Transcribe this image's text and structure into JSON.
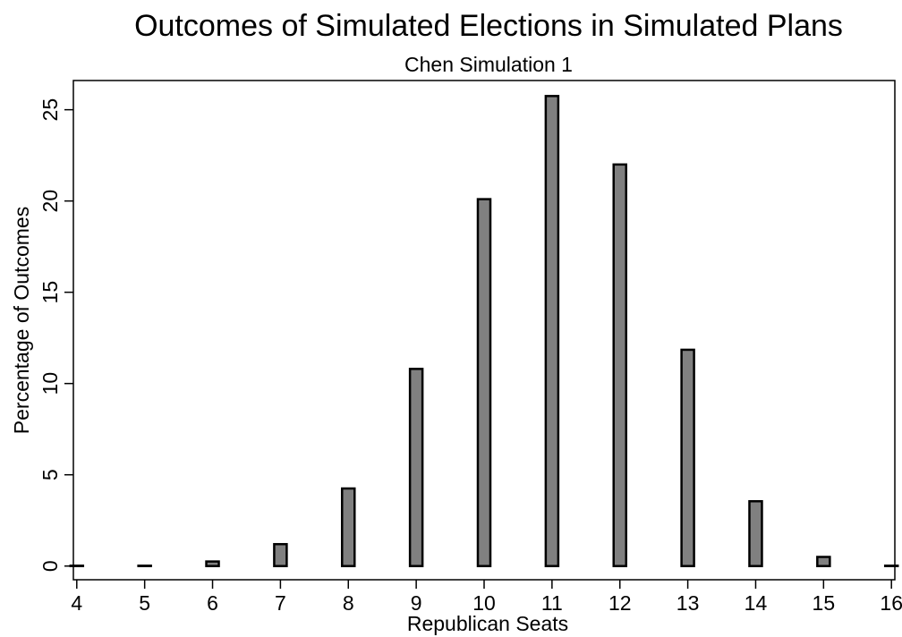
{
  "chart_data": {
    "type": "bar",
    "title": "Outcomes of Simulated Elections in Simulated Plans",
    "subtitle": "Chen Simulation 1",
    "xlabel": "Republican Seats",
    "ylabel": "Percentage of Outcomes",
    "x": [
      4,
      5,
      6,
      7,
      8,
      9,
      10,
      11,
      12,
      13,
      14,
      15,
      16
    ],
    "values": [
      0.02,
      0.02,
      0.25,
      1.2,
      4.25,
      10.8,
      20.1,
      25.75,
      22.0,
      11.85,
      3.55,
      0.5,
      0.02
    ],
    "xlim": [
      3.95,
      16.05
    ],
    "ylim": [
      -0.75,
      26.6
    ],
    "xticks": [
      4,
      5,
      6,
      7,
      8,
      9,
      10,
      11,
      12,
      13,
      14,
      15,
      16
    ],
    "yticks": [
      0,
      5,
      10,
      15,
      20,
      25
    ],
    "bar_color": "#808080",
    "bar_edge_color": "#000000",
    "grid": false,
    "legend": "none"
  }
}
